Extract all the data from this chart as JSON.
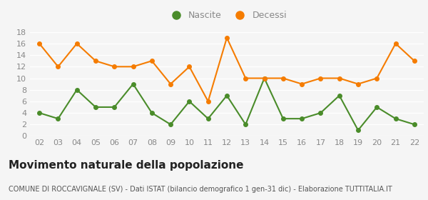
{
  "years": [
    "02",
    "03",
    "04",
    "05",
    "06",
    "07",
    "08",
    "09",
    "10",
    "11",
    "12",
    "13",
    "14",
    "15",
    "16",
    "17",
    "18",
    "19",
    "20",
    "21",
    "22"
  ],
  "nascite": [
    4,
    3,
    8,
    5,
    5,
    9,
    4,
    2,
    6,
    3,
    7,
    2,
    10,
    3,
    3,
    4,
    7,
    1,
    5,
    3,
    2
  ],
  "decessi": [
    16,
    12,
    16,
    13,
    12,
    12,
    13,
    9,
    12,
    6,
    17,
    10,
    10,
    10,
    9,
    10,
    10,
    9,
    10,
    16,
    13
  ],
  "nascite_color": "#4a8c2a",
  "decessi_color": "#f57c00",
  "nascite_label": "Nascite",
  "decessi_label": "Decessi",
  "ylim": [
    0,
    18
  ],
  "yticks": [
    0,
    2,
    4,
    6,
    8,
    10,
    12,
    14,
    16,
    18
  ],
  "title": "Movimento naturale della popolazione",
  "subtitle": "COMUNE DI ROCCAVIGNALE (SV) - Dati ISTAT (bilancio demografico 1 gen-31 dic) - Elaborazione TUTTITALIA.IT",
  "background_color": "#f5f5f5",
  "grid_color": "#ffffff",
  "title_fontsize": 11,
  "subtitle_fontsize": 7,
  "legend_fontsize": 9,
  "tick_fontsize": 8,
  "tick_color": "#888888",
  "label_color": "#888888"
}
